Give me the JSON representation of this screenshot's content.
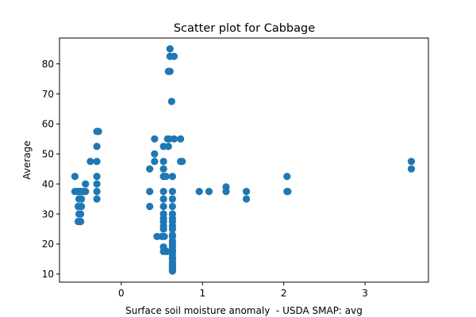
{
  "chart_data": {
    "type": "scatter",
    "title": "Scatter plot for Cabbage",
    "xlabel": "Surface soil moisture anomaly  - USDA SMAP: avg",
    "ylabel": "Average",
    "xlim": [
      -0.76,
      3.78
    ],
    "ylim": [
      7.3,
      88.6
    ],
    "xticks": [
      0,
      1,
      2,
      3
    ],
    "yticks": [
      10,
      20,
      30,
      40,
      50,
      60,
      70,
      80
    ],
    "grid": false,
    "marker_color": "#1f77b4",
    "series": [
      {
        "points": [
          [
            -0.57,
            42.5
          ],
          [
            -0.57,
            37.5
          ],
          [
            -0.54,
            37.5
          ],
          [
            -0.52,
            37.5
          ],
          [
            -0.5,
            37.5
          ],
          [
            -0.47,
            37.5
          ],
          [
            -0.44,
            37.5
          ],
          [
            -0.52,
            35
          ],
          [
            -0.49,
            35
          ],
          [
            -0.53,
            32.5
          ],
          [
            -0.49,
            32.5
          ],
          [
            -0.52,
            30
          ],
          [
            -0.5,
            30
          ],
          [
            -0.53,
            27.5
          ],
          [
            -0.5,
            27.5
          ],
          [
            -0.44,
            40
          ],
          [
            -0.38,
            47.5
          ],
          [
            -0.3,
            57.5
          ],
          [
            -0.28,
            57.5
          ],
          [
            -0.3,
            52.5
          ],
          [
            -0.3,
            47.5
          ],
          [
            -0.3,
            42.5
          ],
          [
            -0.3,
            40
          ],
          [
            -0.3,
            37.5
          ],
          [
            -0.3,
            35
          ],
          [
            0.35,
            45
          ],
          [
            0.35,
            37.5
          ],
          [
            0.35,
            32.5
          ],
          [
            0.41,
            55
          ],
          [
            0.41,
            50
          ],
          [
            0.41,
            47.5
          ],
          [
            0.44,
            22.5
          ],
          [
            0.5,
            22.5
          ],
          [
            0.53,
            22.5
          ],
          [
            0.52,
            52.5
          ],
          [
            0.52,
            47.5
          ],
          [
            0.52,
            45
          ],
          [
            0.52,
            42.5
          ],
          [
            0.55,
            42.5
          ],
          [
            0.52,
            37.5
          ],
          [
            0.52,
            35
          ],
          [
            0.52,
            32.5
          ],
          [
            0.52,
            30
          ],
          [
            0.52,
            28.5
          ],
          [
            0.52,
            27.5
          ],
          [
            0.52,
            26
          ],
          [
            0.52,
            25
          ],
          [
            0.52,
            19
          ],
          [
            0.52,
            17.5
          ],
          [
            0.56,
            17.5
          ],
          [
            0.57,
            55
          ],
          [
            0.59,
            55
          ],
          [
            0.58,
            52.5
          ],
          [
            0.58,
            77.5
          ],
          [
            0.6,
            77.5
          ],
          [
            0.6,
            85
          ],
          [
            0.6,
            82.5
          ],
          [
            0.65,
            82.5
          ],
          [
            0.62,
            67.5
          ],
          [
            0.65,
            55
          ],
          [
            0.73,
            55
          ],
          [
            0.73,
            47.5
          ],
          [
            0.75,
            47.5
          ],
          [
            0.63,
            42.5
          ],
          [
            0.63,
            37.5
          ],
          [
            0.63,
            35
          ],
          [
            0.63,
            32.5
          ],
          [
            0.63,
            30
          ],
          [
            0.63,
            28.5
          ],
          [
            0.63,
            27.5
          ],
          [
            0.63,
            26
          ],
          [
            0.63,
            25
          ],
          [
            0.63,
            23
          ],
          [
            0.63,
            22.5
          ],
          [
            0.63,
            21
          ],
          [
            0.63,
            20
          ],
          [
            0.63,
            19
          ],
          [
            0.63,
            18
          ],
          [
            0.63,
            17.5
          ],
          [
            0.63,
            16.5
          ],
          [
            0.63,
            15.5
          ],
          [
            0.63,
            15
          ],
          [
            0.63,
            14
          ],
          [
            0.63,
            13.5
          ],
          [
            0.63,
            13
          ],
          [
            0.63,
            12.5
          ],
          [
            0.63,
            12
          ],
          [
            0.63,
            11.5
          ],
          [
            0.63,
            11
          ],
          [
            0.96,
            37.5
          ],
          [
            1.08,
            37.5
          ],
          [
            1.29,
            39
          ],
          [
            1.29,
            37.5
          ],
          [
            1.54,
            37.5
          ],
          [
            1.54,
            35
          ],
          [
            2.04,
            42.5
          ],
          [
            2.04,
            37.5
          ],
          [
            2.05,
            37.5
          ],
          [
            3.57,
            47.5
          ],
          [
            3.57,
            45
          ]
        ]
      }
    ]
  }
}
